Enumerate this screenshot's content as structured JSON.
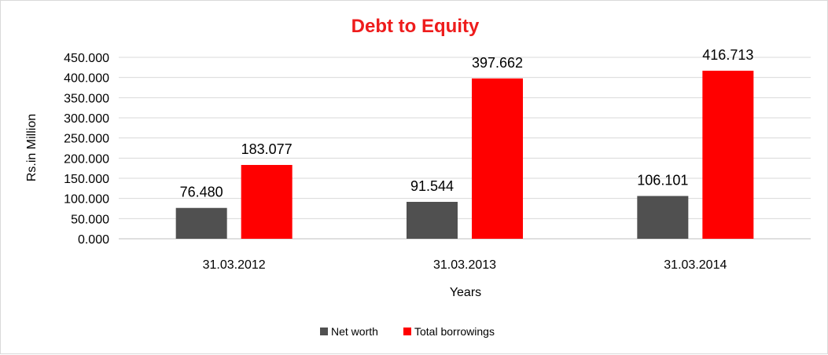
{
  "chart_data": {
    "type": "bar",
    "title": "Debt to Equity",
    "xlabel": "Years",
    "ylabel": "Rs.in Million",
    "categories": [
      "31.03.2012",
      "31.03.2013",
      "31.03.2014"
    ],
    "series": [
      {
        "name": "Net worth",
        "values": [
          76.48,
          91.544,
          106.101
        ],
        "labels": [
          "76.480",
          "91.544",
          "106.101"
        ],
        "color": "#505050"
      },
      {
        "name": "Total borrowings",
        "values": [
          183.077,
          397.662,
          416.713
        ],
        "labels": [
          "183.077",
          "397.662",
          "416.713"
        ],
        "color": "#ff0000"
      }
    ],
    "ylim": [
      0,
      450
    ],
    "yticks": [
      "0.000",
      "50.000",
      "100.000",
      "150.000",
      "200.000",
      "250.000",
      "300.000",
      "350.000",
      "400.000",
      "450.000"
    ],
    "title_color": "#ee1c1c",
    "grid": true,
    "legend": "bottom"
  }
}
